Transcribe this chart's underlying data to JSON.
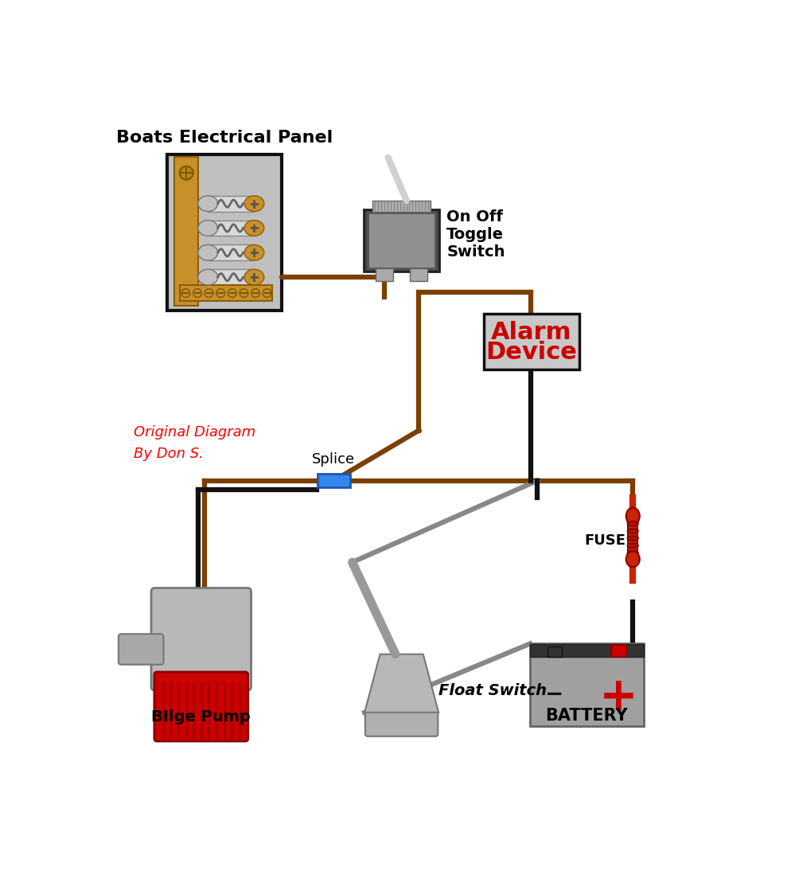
{
  "bg_color": "#ffffff",
  "wire_brown": "#7B3F00",
  "wire_black": "#111111",
  "wire_gray": "#888888",
  "panel_bg": "#c0c0c0",
  "panel_border": "#111111",
  "panel_wood": "#c8902a",
  "toggle_body": "#909090",
  "toggle_dark": "#555555",
  "alarm_text": "#cc0000",
  "alarm_border": "#111111",
  "alarm_bg": "#c8c8c8",
  "splice_color": "#3388ee",
  "battery_body": "#909090",
  "battery_top": "#333333",
  "battery_pos_color": "#cc0000",
  "pump_body": "#b0b0b0",
  "pump_red": "#cc0000",
  "fuse_color": "#cc2200",
  "label_panel": "Boats Electrical Panel",
  "label_toggle": "On Off\nToggle\nSwitch",
  "label_alarm": "Alarm\nDevice",
  "label_splice": "Splice",
  "label_fuse": "FUSE",
  "label_battery": "BATTERY",
  "label_pump": "BIlge Pump",
  "label_float": "Float Switch",
  "label_credit_1": "Original Diagram",
  "label_credit_2": "By Don S."
}
